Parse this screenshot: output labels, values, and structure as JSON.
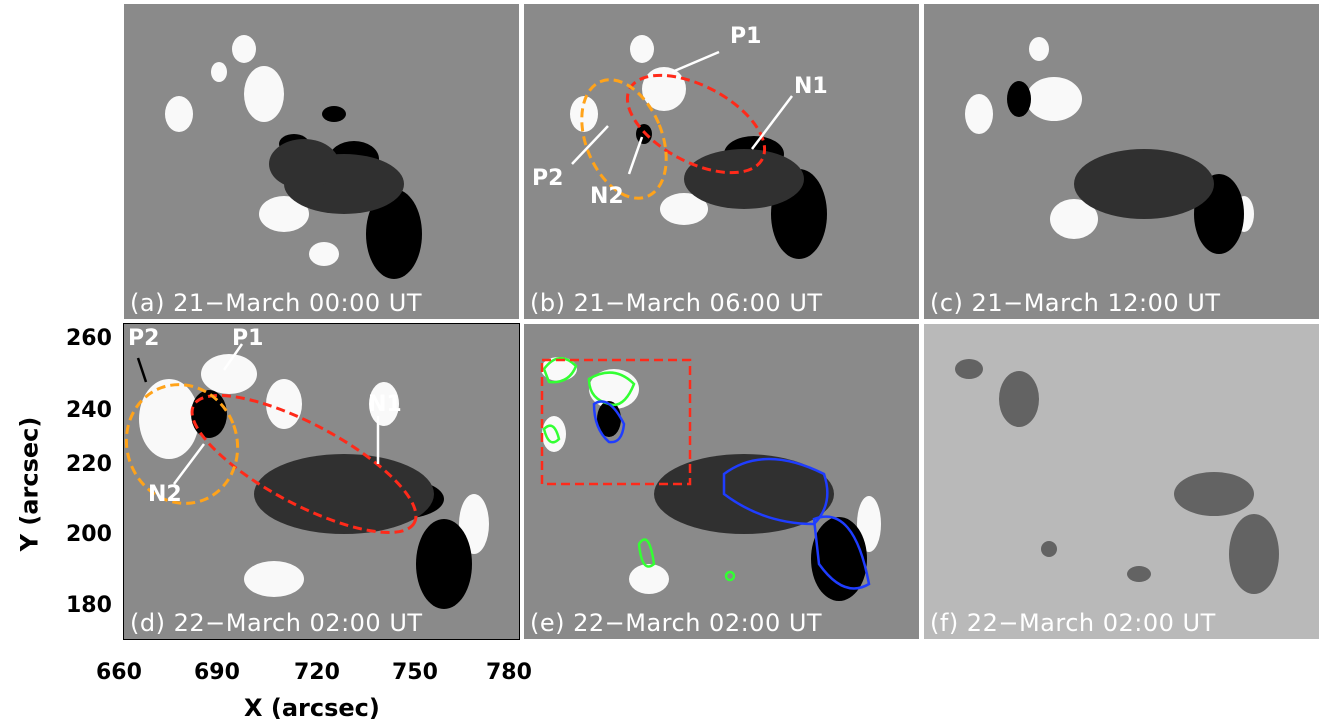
{
  "figure": {
    "panels": [
      {
        "id": "a",
        "label": "(a) 21−March 00:00 UT"
      },
      {
        "id": "b",
        "label": "(b) 21−March 06:00 UT"
      },
      {
        "id": "c",
        "label": "(c) 21−March 12:00 UT"
      },
      {
        "id": "d",
        "label": "(d) 22−March 02:00 UT"
      },
      {
        "id": "e",
        "label": "(e) 22−March 02:00 UT"
      },
      {
        "id": "f",
        "label": "(f) 22−March 02:00 UT"
      }
    ],
    "annotations_b": {
      "p1": "P1",
      "n1": "N1",
      "p2": "P2",
      "n2": "N2"
    },
    "annotations_d": {
      "p1": "P1",
      "n1": "N1",
      "p2": "P2",
      "n2": "N2"
    },
    "x_axis": {
      "title": "X (arcsec)",
      "ticks": [
        "660",
        "690",
        "720",
        "750",
        "780"
      ]
    },
    "y_axis": {
      "title": "Y (arcsec)",
      "ticks": [
        "260",
        "240",
        "220",
        "200",
        "180"
      ]
    },
    "colors": {
      "ellipse_p1n1": "#ff2a1a",
      "ellipse_p2n2": "#ffa31a",
      "contour_positive": "#33ff33",
      "contour_negative": "#1f3dff",
      "box": "#ff2a1a"
    }
  }
}
